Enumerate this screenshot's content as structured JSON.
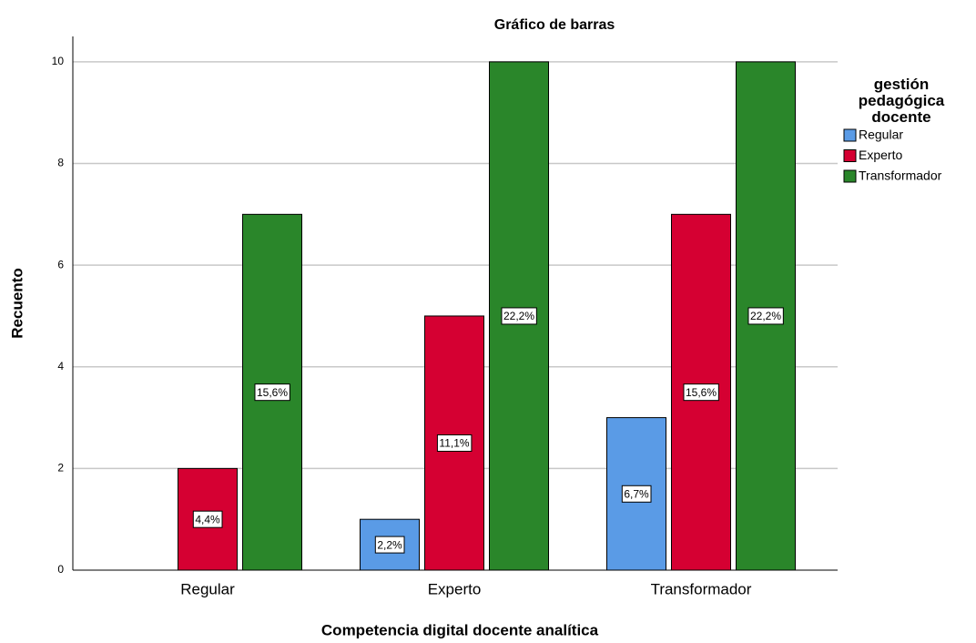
{
  "chart_data": {
    "type": "bar",
    "title": "Gráfico de barras",
    "x_label": "Competencia digital docente analítica",
    "y_label": "Recuento",
    "legend_title": "gestión pedagógica docente",
    "categories": [
      "Regular",
      "Experto",
      "Transformador"
    ],
    "series": [
      {
        "name": "Regular",
        "color": "#5a9be6",
        "values": [
          0,
          1,
          3
        ],
        "percentages": [
          null,
          2.2,
          6.7
        ],
        "percentage_labels": [
          null,
          "2,2%",
          "6,7%"
        ]
      },
      {
        "name": "Experto",
        "color": "#d50032",
        "values": [
          2,
          5,
          7
        ],
        "percentages": [
          4.4,
          11.1,
          15.6
        ],
        "percentage_labels": [
          "4,4%",
          "11,1%",
          "15,6%"
        ]
      },
      {
        "name": "Transformador",
        "color": "#2a862a",
        "values": [
          7,
          10,
          10
        ],
        "percentages": [
          15.6,
          22.2,
          22.2
        ],
        "percentage_labels": [
          "15,6%",
          "22,2%",
          "22,2%"
        ]
      }
    ],
    "ylim": [
      0,
      10.5
    ],
    "yticks": [
      0,
      2,
      4,
      6,
      8,
      10
    ],
    "grid": true,
    "legend": "right"
  }
}
